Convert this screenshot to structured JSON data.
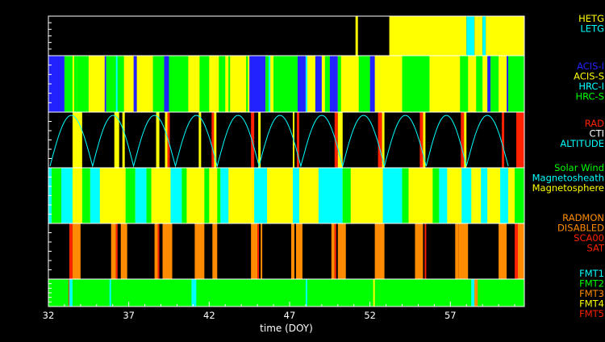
{
  "chart_data": {
    "type": "timeline-strips",
    "x_axis": {
      "label": "time (DOY)",
      "range": [
        32,
        61.6
      ],
      "ticks": [
        32,
        37,
        42,
        47,
        52,
        57
      ],
      "tick_labels": [
        "32",
        "37",
        "42",
        "47",
        "52",
        "57"
      ]
    },
    "colors": {
      "blue": "#2222ff",
      "yellow": "#ffff00",
      "cyan": "#00ffff",
      "green": "#00ff00",
      "red": "#ff2200",
      "orange": "#ff8c00",
      "white": "#ffffff"
    },
    "panels": [
      {
        "id": "grating",
        "legend": [
          {
            "label": "HETG",
            "color": "#ffff00"
          },
          {
            "label": "LETG",
            "color": "#00ffff"
          }
        ],
        "default": "#000000",
        "segments": [
          [
            51.1,
            51.25,
            "#ffff00"
          ],
          [
            53.2,
            58.0,
            "#ffff00"
          ],
          [
            58.0,
            58.5,
            "#00ffff"
          ],
          [
            58.5,
            59.0,
            "#ffff00"
          ],
          [
            59.0,
            59.2,
            "#00ffff"
          ],
          [
            59.2,
            61.6,
            "#ffff00"
          ]
        ]
      },
      {
        "id": "instrument",
        "legend": [
          {
            "label": "ACIS-I",
            "color": "#2222ff"
          },
          {
            "label": "ACIS-S",
            "color": "#ffff00"
          },
          {
            "label": "HRC-I",
            "color": "#00ffff"
          },
          {
            "label": "HRC-S",
            "color": "#00ff00"
          }
        ],
        "default": "#ffff00",
        "segments": [
          [
            32.0,
            33.0,
            "#2222ff"
          ],
          [
            33.0,
            33.5,
            "#00ff00"
          ],
          [
            33.6,
            33.8,
            "#00ff00"
          ],
          [
            33.8,
            34.5,
            "#00ff00"
          ],
          [
            35.5,
            35.6,
            "#2222ff"
          ],
          [
            35.6,
            36.7,
            "#00ff00"
          ],
          [
            36.2,
            36.3,
            "#00ffff"
          ],
          [
            37.3,
            37.5,
            "#2222ff"
          ],
          [
            38.5,
            39.2,
            "#00ff00"
          ],
          [
            39.2,
            39.5,
            "#2222ff"
          ],
          [
            39.5,
            40.7,
            "#00ff00"
          ],
          [
            41.4,
            42.0,
            "#00ff00"
          ],
          [
            42.6,
            43.0,
            "#00ff00"
          ],
          [
            43.2,
            43.3,
            "#00ff00"
          ],
          [
            44.3,
            44.4,
            "#00ff00"
          ],
          [
            44.5,
            45.5,
            "#2222ff"
          ],
          [
            45.5,
            45.8,
            "#00ff00"
          ],
          [
            45.7,
            45.8,
            "#00ffff"
          ],
          [
            46.0,
            47.5,
            "#00ff00"
          ],
          [
            47.5,
            48.0,
            "#2222ff"
          ],
          [
            48.0,
            48.1,
            "#00ffff"
          ],
          [
            48.6,
            49.0,
            "#2222ff"
          ],
          [
            49.2,
            49.5,
            "#00ff00"
          ],
          [
            49.5,
            50.0,
            "#2222ff"
          ],
          [
            50.0,
            50.2,
            "#00ff00"
          ],
          [
            51.3,
            52.0,
            "#00ff00"
          ],
          [
            52.0,
            52.3,
            "#2222ff"
          ],
          [
            54.0,
            55.7,
            "#00ff00"
          ],
          [
            57.6,
            58.1,
            "#00ff00"
          ],
          [
            58.6,
            59.0,
            "#00ff00"
          ],
          [
            59.3,
            59.5,
            "#2222ff"
          ],
          [
            59.5,
            60.0,
            "#00ff00"
          ],
          [
            60.6,
            61.6,
            "#00ff00"
          ],
          [
            60.5,
            60.6,
            "#2222ff"
          ]
        ]
      },
      {
        "id": "radiation",
        "legend": [
          {
            "label": "RAD",
            "color": "#ff2200"
          },
          {
            "label": "CTI",
            "color": "#ffffff"
          },
          {
            "label": "ALTITUDE",
            "color": "#00ffff"
          }
        ],
        "default": "#000000",
        "altitude_perigees": [
          32.1,
          34.75,
          37.3,
          39.9,
          42.5,
          45.1,
          47.7,
          50.3,
          52.9,
          55.5,
          58.0,
          60.6
        ],
        "segments": [
          [
            33.5,
            34.1,
            "#ffff00"
          ],
          [
            36.1,
            36.4,
            "#ffff00"
          ],
          [
            36.6,
            36.75,
            "#ffff00"
          ],
          [
            38.7,
            38.9,
            "#ffff00"
          ],
          [
            39.25,
            39.4,
            "#ffff00"
          ],
          [
            39.4,
            39.55,
            "#ff2200"
          ],
          [
            41.35,
            41.5,
            "#ffff00"
          ],
          [
            42.15,
            42.3,
            "#ff2200"
          ],
          [
            42.3,
            42.45,
            "#ffff00"
          ],
          [
            44.6,
            44.8,
            "#ff2200"
          ],
          [
            45.05,
            45.2,
            "#ffff00"
          ],
          [
            47.2,
            47.3,
            "#ffff00"
          ],
          [
            47.45,
            47.6,
            "#ff2200"
          ],
          [
            49.8,
            50.0,
            "#ff2200"
          ],
          [
            50.0,
            50.3,
            "#ffff00"
          ],
          [
            52.5,
            52.75,
            "#ff2200"
          ],
          [
            52.75,
            52.9,
            "#ffff00"
          ],
          [
            55.1,
            55.3,
            "#ff2200"
          ],
          [
            55.3,
            55.45,
            "#ffff00"
          ],
          [
            57.65,
            57.85,
            "#ff2200"
          ],
          [
            57.85,
            58.0,
            "#ffff00"
          ],
          [
            60.2,
            60.35,
            "#ff2200"
          ],
          [
            61.1,
            61.6,
            "#ff2200"
          ]
        ]
      },
      {
        "id": "region",
        "legend": [
          {
            "label": "Solar Wind",
            "color": "#00ff00"
          },
          {
            "label": "Magnetosheath",
            "color": "#00ffff"
          },
          {
            "label": "Magnetosphere",
            "color": "#ffff00"
          }
        ],
        "default": "#ffff00",
        "segments": [
          [
            32.0,
            32.2,
            "#00ffff"
          ],
          [
            32.2,
            32.8,
            "#00ff00"
          ],
          [
            32.8,
            33.5,
            "#00ffff"
          ],
          [
            34.1,
            34.6,
            "#00ff00"
          ],
          [
            34.6,
            35.2,
            "#00ffff"
          ],
          [
            36.8,
            37.4,
            "#00ff00"
          ],
          [
            37.4,
            38.1,
            "#00ffff"
          ],
          [
            38.1,
            38.4,
            "#00ff00"
          ],
          [
            39.6,
            40.3,
            "#00ffff"
          ],
          [
            40.3,
            40.6,
            "#00ff00"
          ],
          [
            41.7,
            42.0,
            "#00ff00"
          ],
          [
            42.5,
            42.7,
            "#00ff00"
          ],
          [
            42.7,
            43.2,
            "#00ffff"
          ],
          [
            44.8,
            45.6,
            "#00ffff"
          ],
          [
            47.2,
            47.6,
            "#00ffff"
          ],
          [
            48.8,
            50.3,
            "#00ffff"
          ],
          [
            50.3,
            50.8,
            "#00ff00"
          ],
          [
            52.8,
            54.0,
            "#00ffff"
          ],
          [
            54.0,
            54.4,
            "#00ff00"
          ],
          [
            55.9,
            56.3,
            "#00ff00"
          ],
          [
            56.3,
            56.8,
            "#00ffff"
          ],
          [
            57.7,
            58.3,
            "#00ffff"
          ],
          [
            58.9,
            59.3,
            "#00ffff"
          ],
          [
            60.1,
            60.6,
            "#00ffff"
          ],
          [
            61.0,
            61.6,
            "#00ff00"
          ]
        ]
      },
      {
        "id": "radmon",
        "legend": [
          {
            "label": "RADMON",
            "color": "#ff8c00"
          },
          {
            "label": "DISABLED",
            "color": "#ff8c00"
          },
          {
            "label": "SCA00",
            "color": "#ff2200"
          },
          {
            "label": "SAT",
            "color": "#ff2200"
          }
        ],
        "default": "#000000",
        "segments": [
          [
            33.3,
            33.5,
            "#ff2200"
          ],
          [
            33.5,
            34.0,
            "#ff8c00"
          ],
          [
            35.9,
            36.2,
            "#ff8c00"
          ],
          [
            36.2,
            36.3,
            "#ff2200"
          ],
          [
            36.5,
            36.9,
            "#ff8c00"
          ],
          [
            38.6,
            38.8,
            "#ff8c00"
          ],
          [
            38.8,
            38.9,
            "#ff2200"
          ],
          [
            39.1,
            39.7,
            "#ff8c00"
          ],
          [
            41.1,
            41.7,
            "#ff8c00"
          ],
          [
            42.2,
            42.5,
            "#ff8c00"
          ],
          [
            44.6,
            45.0,
            "#ff8c00"
          ],
          [
            45.0,
            45.1,
            "#ff2200"
          ],
          [
            45.2,
            45.3,
            "#ff8c00"
          ],
          [
            47.1,
            47.3,
            "#ff8c00"
          ],
          [
            47.4,
            47.8,
            "#ff8c00"
          ],
          [
            49.6,
            49.8,
            "#ff8c00"
          ],
          [
            49.8,
            49.9,
            "#ff2200"
          ],
          [
            50.0,
            50.5,
            "#ff8c00"
          ],
          [
            52.3,
            52.9,
            "#ff8c00"
          ],
          [
            54.8,
            55.3,
            "#ff8c00"
          ],
          [
            55.4,
            55.5,
            "#ff2200"
          ],
          [
            57.3,
            57.5,
            "#ff8c00"
          ],
          [
            57.5,
            58.1,
            "#ff8c00"
          ],
          [
            60.0,
            60.5,
            "#ff8c00"
          ],
          [
            61.0,
            61.2,
            "#ff2200"
          ],
          [
            61.2,
            61.6,
            "#ff8c00"
          ]
        ]
      },
      {
        "id": "format",
        "legend": [
          {
            "label": "FMT1",
            "color": "#00ffff"
          },
          {
            "label": "FMT2",
            "color": "#00ff00"
          },
          {
            "label": "FMT3",
            "color": "#ff8c00"
          },
          {
            "label": "FMT4",
            "color": "#ffff00"
          },
          {
            "label": "FMT5",
            "color": "#ff2200"
          }
        ],
        "default": "#00ff00",
        "segments": [
          [
            33.25,
            33.3,
            "#ff2200"
          ],
          [
            33.3,
            33.5,
            "#00ffff"
          ],
          [
            35.8,
            35.9,
            "#00ffff"
          ],
          [
            40.9,
            41.2,
            "#00ffff"
          ],
          [
            48.0,
            48.1,
            "#00ffff"
          ],
          [
            52.2,
            52.3,
            "#ffff00"
          ],
          [
            58.3,
            58.5,
            "#00ffff"
          ],
          [
            58.5,
            58.7,
            "#ff8c00"
          ]
        ]
      }
    ]
  }
}
